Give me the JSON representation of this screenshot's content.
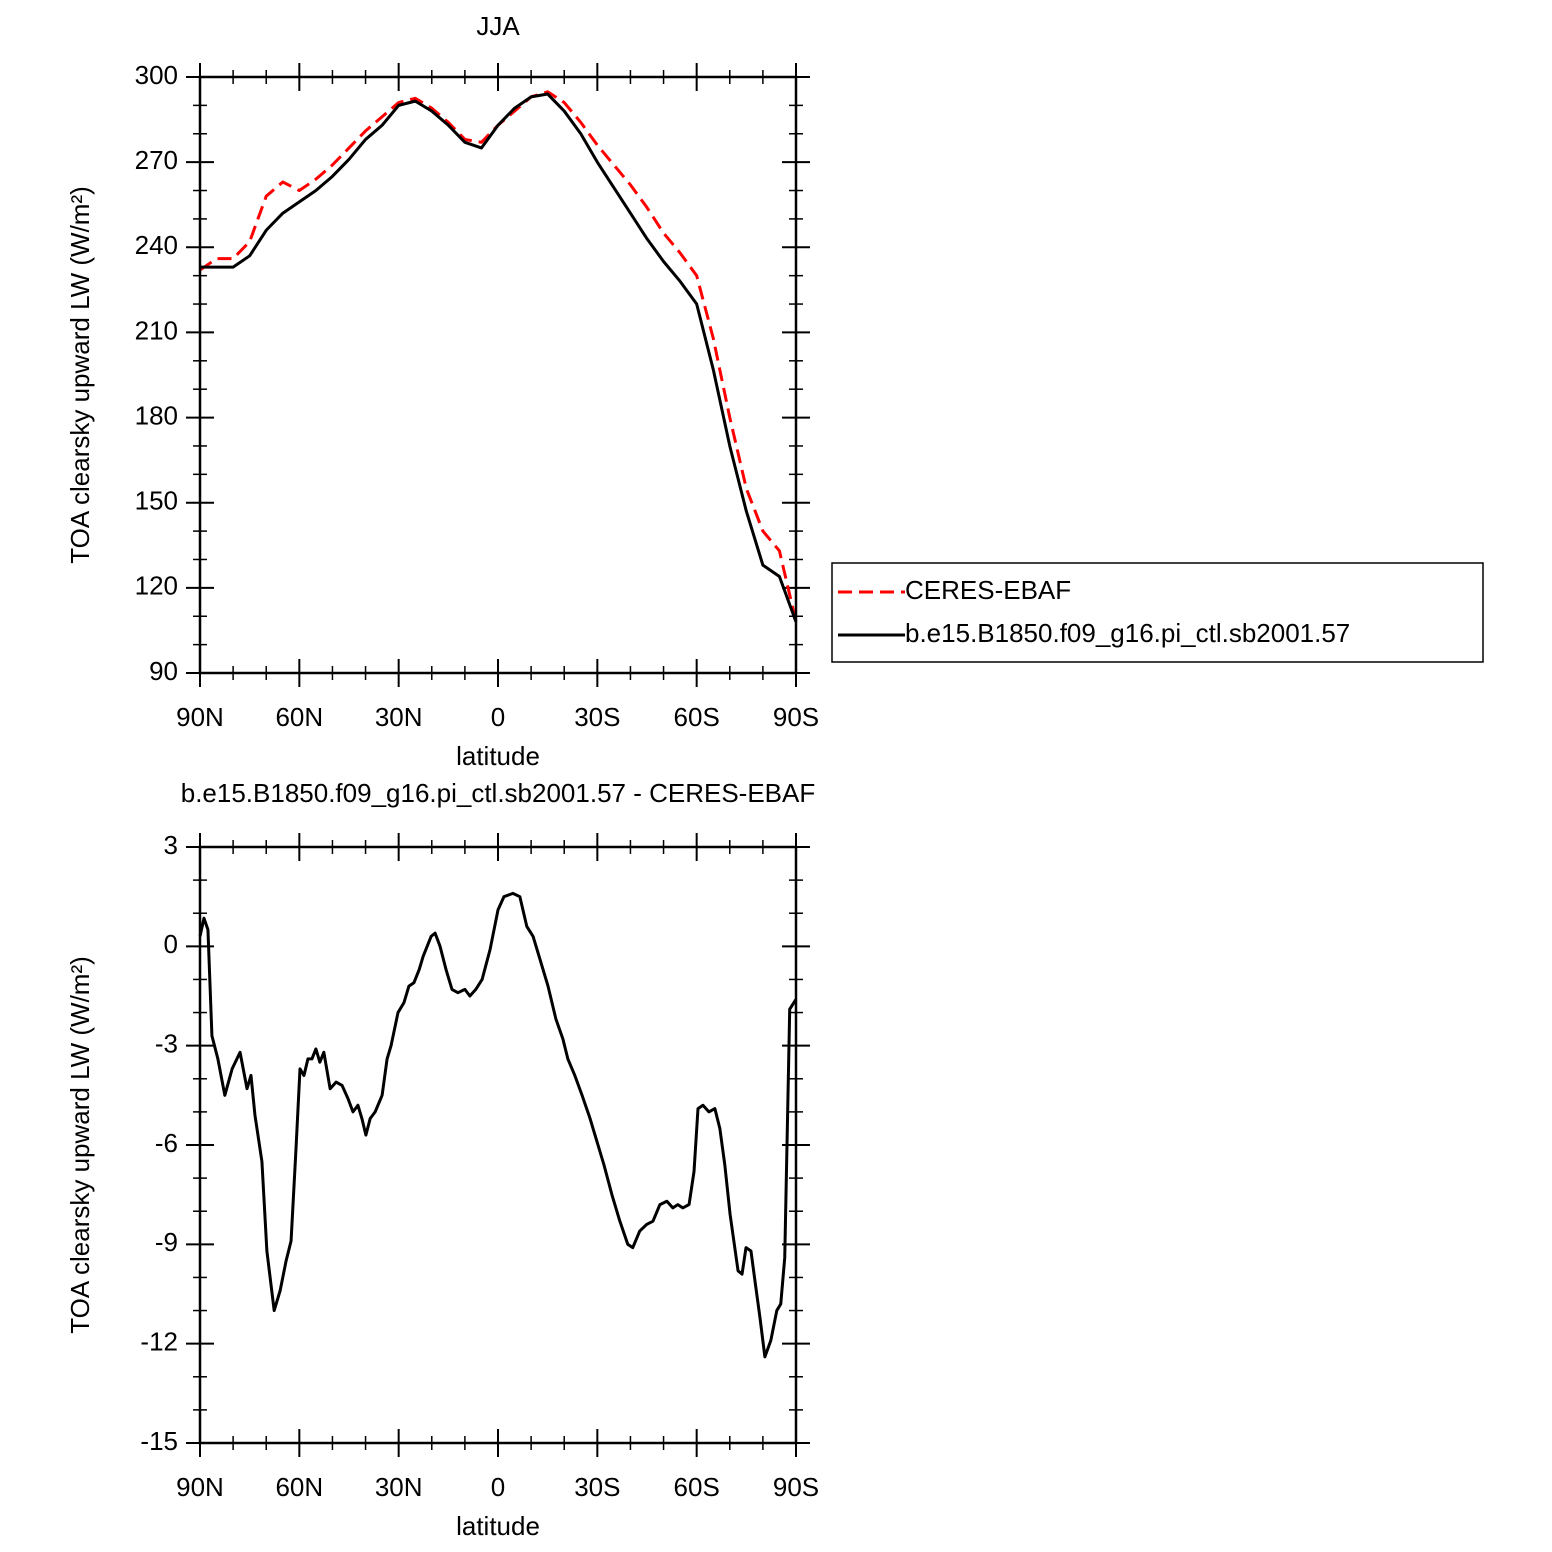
{
  "chart_data": [
    {
      "type": "line",
      "title": "JJA",
      "xlabel": "latitude",
      "ylabel": "TOA clearsky upward LW (W/m²)",
      "x": [
        90,
        85,
        80,
        75,
        70,
        65,
        60,
        55,
        50,
        45,
        40,
        35,
        30,
        25,
        20,
        15,
        10,
        5,
        0,
        -5,
        -10,
        -15,
        -20,
        -25,
        -30,
        -35,
        -40,
        -45,
        -50,
        -55,
        -60,
        -65,
        -70,
        -75,
        -80,
        -85,
        -90
      ],
      "series": [
        {
          "name": "CERES-EBAF",
          "color": "#ff0000",
          "dash": true,
          "values": [
            232,
            236,
            236,
            242,
            258,
            263,
            260,
            264,
            269,
            275,
            281,
            286,
            291,
            292.5,
            289,
            284,
            278,
            277,
            283,
            288,
            293,
            294.8,
            291,
            284,
            276,
            269,
            262,
            254,
            245,
            238,
            230,
            208,
            180,
            155,
            140,
            133,
            108
          ]
        },
        {
          "name": "b.e15.B1850.f09_g16.pi_ctl.sb2001.57",
          "color": "#000000",
          "dash": false,
          "values": [
            233,
            233,
            233,
            237,
            246,
            252,
            256,
            260,
            265,
            271,
            278,
            283,
            290,
            291.5,
            288,
            283,
            277,
            275,
            283,
            289,
            293,
            294,
            288,
            280,
            270,
            261,
            252,
            243,
            235,
            228,
            220,
            197,
            170,
            147,
            128,
            124,
            108
          ]
        }
      ],
      "xlim": [
        90,
        -90
      ],
      "xticks": [
        {
          "value": 90,
          "label": "90N"
        },
        {
          "value": 60,
          "label": "60N"
        },
        {
          "value": 30,
          "label": "30N"
        },
        0,
        {
          "value": -30,
          "label": "30S"
        },
        {
          "value": -60,
          "label": "60S"
        },
        {
          "value": -90,
          "label": "90S"
        }
      ],
      "xminorticks": [
        80,
        70,
        50,
        40,
        20,
        10,
        -10,
        -20,
        -40,
        -50,
        -70,
        -80
      ],
      "ylim": [
        90,
        300
      ],
      "yticks": [
        90,
        120,
        150,
        180,
        210,
        240,
        270,
        300
      ],
      "yminorticks": [
        100,
        110,
        130,
        140,
        160,
        170,
        190,
        200,
        220,
        230,
        250,
        260,
        280,
        290
      ],
      "legend": "right"
    },
    {
      "type": "line",
      "title": "b.e15.B1850.f09_g16.pi_ctl.sb2001.57 - CERES-EBAF",
      "xlabel": "latitude",
      "ylabel": "TOA clearsky upward LW (W/m²)",
      "x": [
        90,
        88.8,
        87.6,
        86.4,
        84.6,
        82.5,
        80.3,
        77.9,
        75.8,
        74.6,
        73.4,
        71.3,
        69.8,
        67.6,
        65.8,
        64,
        62.5,
        61,
        59.8,
        58.6,
        57.4,
        56.2,
        55,
        53.8,
        52.6,
        50.7,
        48.9,
        47.1,
        45.3,
        43.8,
        42.3,
        41.1,
        39.9,
        38.6,
        37.1,
        35,
        33.5,
        32.3,
        30.2,
        28.4,
        26.9,
        25.4,
        23.8,
        22.6,
        20.2,
        19,
        17.5,
        15.7,
        13.9,
        12.1,
        10,
        8.5,
        6.7,
        4.8,
        2.4,
        0,
        -1.8,
        -4.5,
        -6.6,
        -8.7,
        -10.6,
        -12.7,
        -15.1,
        -17.5,
        -19.6,
        -21.1,
        -23.2,
        -25.4,
        -27.8,
        -29.9,
        -32,
        -34.4,
        -36.8,
        -39.2,
        -40.7,
        -42.8,
        -44.9,
        -46.8,
        -48.9,
        -51,
        -52.8,
        -54.3,
        -55.8,
        -57.7,
        -59.2,
        -60.4,
        -61.9,
        -63.7,
        -65.5,
        -67,
        -68.5,
        -70.1,
        -72.5,
        -73.7,
        -74.9,
        -76.4,
        -77.6,
        -79.1,
        -80.6,
        -82.4,
        -84.2,
        -85.4,
        -86.6,
        -88.1,
        -90
      ],
      "series": [
        {
          "color": "#000000",
          "dash": false,
          "values": [
            0.3,
            0.85,
            0.5,
            -2.7,
            -3.4,
            -4.5,
            -3.7,
            -3.2,
            -4.3,
            -3.9,
            -5.1,
            -6.5,
            -9.2,
            -11,
            -10.4,
            -9.5,
            -8.9,
            -6.1,
            -3.7,
            -3.9,
            -3.4,
            -3.4,
            -3.1,
            -3.5,
            -3.2,
            -4.3,
            -4.1,
            -4.2,
            -4.6,
            -5,
            -4.8,
            -5.2,
            -5.7,
            -5.2,
            -5,
            -4.5,
            -3.4,
            -3,
            -2,
            -1.7,
            -1.2,
            -1.1,
            -0.7,
            -0.3,
            0.3,
            0.4,
            0,
            -0.7,
            -1.3,
            -1.4,
            -1.3,
            -1.5,
            -1.3,
            -1,
            -0.1,
            1.1,
            1.5,
            1.6,
            1.5,
            0.6,
            0.3,
            -0.4,
            -1.2,
            -2.2,
            -2.8,
            -3.4,
            -3.9,
            -4.5,
            -5.2,
            -5.9,
            -6.6,
            -7.5,
            -8.3,
            -9,
            -9.1,
            -8.6,
            -8.4,
            -8.3,
            -7.8,
            -7.7,
            -7.9,
            -7.8,
            -7.9,
            -7.8,
            -6.8,
            -4.9,
            -4.8,
            -5,
            -4.9,
            -5.5,
            -6.6,
            -8.1,
            -9.8,
            -9.9,
            -9.1,
            -9.2,
            -10.1,
            -11.2,
            -12.4,
            -11.9,
            -11,
            -10.8,
            -9.4,
            -1.9,
            -1.6
          ]
        }
      ],
      "xlim": [
        90,
        -90
      ],
      "xticks": [
        {
          "value": 90,
          "label": "90N"
        },
        {
          "value": 60,
          "label": "60N"
        },
        {
          "value": 30,
          "label": "30N"
        },
        0,
        {
          "value": -30,
          "label": "30S"
        },
        {
          "value": -60,
          "label": "60S"
        },
        {
          "value": -90,
          "label": "90S"
        }
      ],
      "xminorticks": [
        80,
        70,
        50,
        40,
        20,
        10,
        -10,
        -20,
        -40,
        -50,
        -70,
        -80
      ],
      "ylim": [
        -15,
        3
      ],
      "yticks": [
        -15,
        -12,
        -9,
        -6,
        -3,
        0,
        3
      ],
      "yminorticks": [
        -14,
        -13,
        -11,
        -10,
        -8,
        -7,
        -5,
        -4,
        -2,
        -1,
        1,
        2
      ]
    }
  ]
}
